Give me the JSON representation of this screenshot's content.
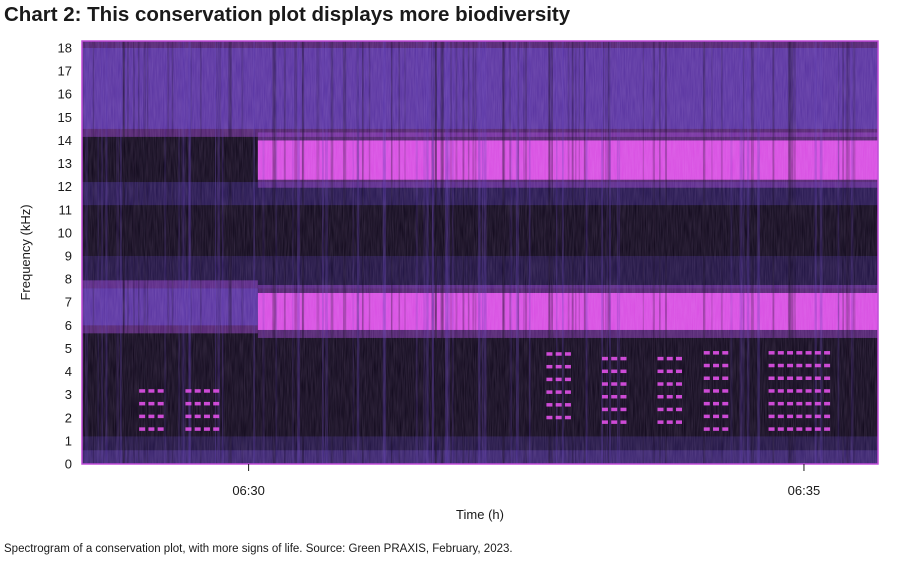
{
  "chart_data": {
    "type": "heatmap",
    "title": "Chart 2: This conservation plot displays more biodiversity",
    "xlabel": "Time (h)",
    "ylabel": "Frequency (kHz)",
    "ylim": [
      0,
      18
    ],
    "y_ticks": [
      "0",
      "1",
      "2",
      "3",
      "4",
      "5",
      "6",
      "7",
      "8",
      "9",
      "10",
      "11",
      "12",
      "13",
      "14",
      "15",
      "16",
      "17",
      "18"
    ],
    "xlim": [
      "06:28:30",
      "06:35:40"
    ],
    "x_ticks": [
      {
        "label": "06:30",
        "time": "06:30:00"
      },
      {
        "label": "06:35",
        "time": "06:35:00"
      }
    ],
    "colormap": [
      "#0d0618",
      "#2a1a5e",
      "#5a38b0",
      "#a040d8",
      "#e050e8"
    ],
    "bands": [
      {
        "low_khz": 12.3,
        "high_khz": 14.0,
        "start": "06:30:05",
        "end": "06:35:40",
        "intensity": "high"
      },
      {
        "low_khz": 5.8,
        "high_khz": 7.4,
        "start": "06:30:05",
        "end": "06:35:40",
        "intensity": "high"
      },
      {
        "low_khz": 6.0,
        "high_khz": 7.6,
        "start": "06:28:30",
        "end": "06:30:05",
        "intensity": "medium"
      },
      {
        "low_khz": 14.5,
        "high_khz": 18.0,
        "start": "06:28:30",
        "end": "06:35:40",
        "intensity": "medium"
      }
    ],
    "calls": [
      {
        "start": "06:29:00",
        "end": "06:29:15",
        "low_khz": 1.5,
        "high_khz": 3.3
      },
      {
        "start": "06:29:25",
        "end": "06:29:45",
        "low_khz": 1.5,
        "high_khz": 3.3
      },
      {
        "start": "06:32:40",
        "end": "06:32:55",
        "low_khz": 2.0,
        "high_khz": 5.2
      },
      {
        "start": "06:33:10",
        "end": "06:33:25",
        "low_khz": 1.8,
        "high_khz": 5.0
      },
      {
        "start": "06:33:40",
        "end": "06:33:55",
        "low_khz": 1.8,
        "high_khz": 5.0
      },
      {
        "start": "06:34:05",
        "end": "06:34:20",
        "low_khz": 1.5,
        "high_khz": 5.0
      },
      {
        "start": "06:34:40",
        "end": "06:35:15",
        "low_khz": 1.5,
        "high_khz": 5.0
      }
    ]
  },
  "caption": "Spectrogram of a conservation plot, with more signs of life. Source: Green PRAXIS, February, 2023."
}
